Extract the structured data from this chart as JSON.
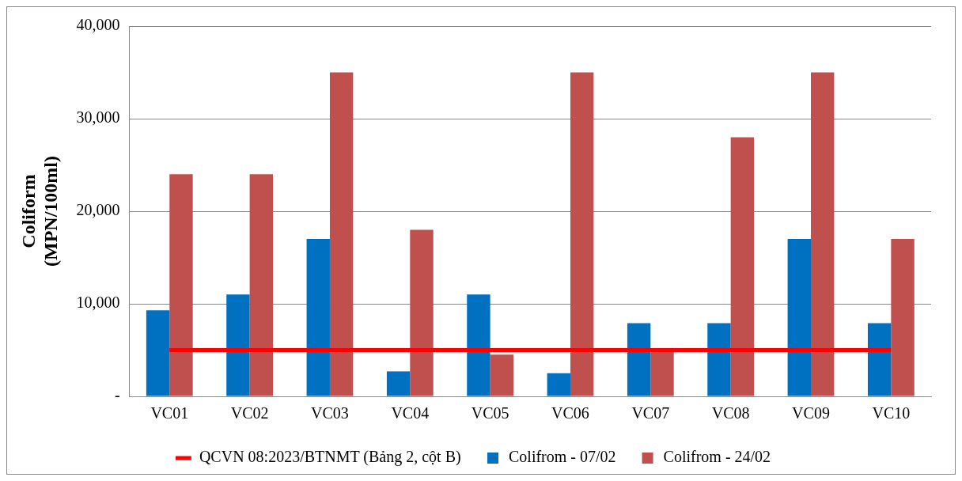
{
  "chart_data": {
    "type": "bar",
    "ylabel": "Coliform\n(MPN/100ml)",
    "categories": [
      "VC01",
      "VC02",
      "VC03",
      "VC04",
      "VC05",
      "VC06",
      "VC07",
      "VC08",
      "VC09",
      "VC10"
    ],
    "series": [
      {
        "name": "Colifrom - 07/02",
        "color": "#0070c0",
        "values": [
          9300,
          11000,
          17000,
          2700,
          11000,
          2500,
          7900,
          7900,
          17000,
          7900
        ]
      },
      {
        "name": "Colifrom - 24/02",
        "color": "#c0504d",
        "values": [
          24000,
          24000,
          35000,
          18000,
          4500,
          35000,
          4900,
          28000,
          35000,
          17000
        ]
      },
      {
        "name": "QCVN 08:2023/BTNMT (Bảng 2, cột B)",
        "type": "line",
        "color": "#ff0000",
        "values": [
          5000,
          5000,
          5000,
          5000,
          5000,
          5000,
          5000,
          5000,
          5000,
          5000
        ]
      }
    ],
    "ylim": [
      0,
      40000
    ],
    "yticks": [
      {
        "value": 0,
        "label": "-"
      },
      {
        "value": 10000,
        "label": "10,000"
      },
      {
        "value": 20000,
        "label": "20,000"
      },
      {
        "value": 30000,
        "label": "30,000"
      },
      {
        "value": 40000,
        "label": "40,000"
      }
    ],
    "grid": "y",
    "legend": "bottom",
    "marker": "none"
  }
}
